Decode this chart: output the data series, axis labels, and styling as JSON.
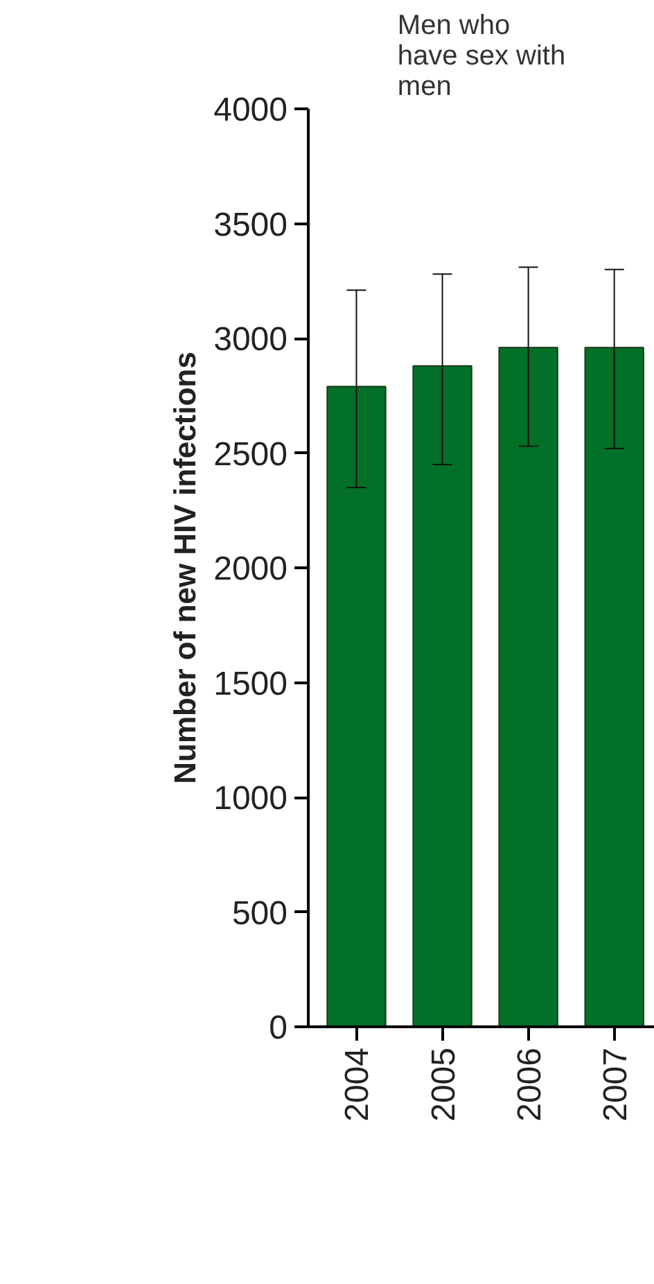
{
  "chart_data": {
    "type": "bar",
    "title": "Men who\nhave sex with\nmen",
    "ylabel": "Number of new HIV infections",
    "categories": [
      "2004",
      "2005",
      "2006",
      "2007"
    ],
    "values": [
      2790,
      2880,
      2960,
      2960
    ],
    "errors": [
      [
        2350,
        3210
      ],
      [
        2450,
        3280
      ],
      [
        2530,
        3310
      ],
      [
        2520,
        3300
      ]
    ],
    "color": "#037027",
    "ylim": [
      0,
      4000
    ],
    "yticks": [
      0,
      500,
      1000,
      1500,
      2000,
      2500,
      3000,
      3500,
      4000
    ],
    "grid": false
  }
}
